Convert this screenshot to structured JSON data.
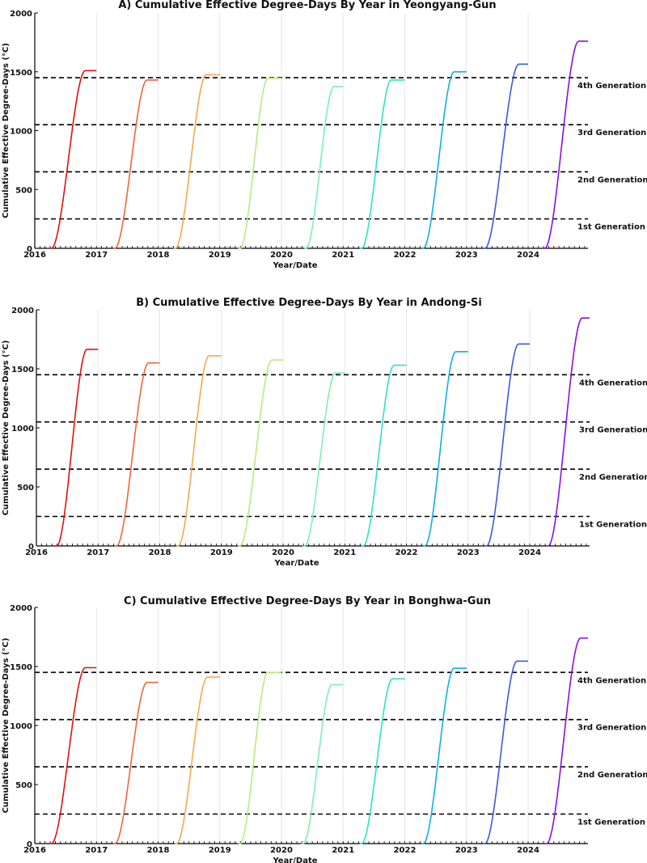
{
  "chart_data": [
    {
      "type": "line",
      "title": "A)  Cumulative Effective Degree-Days By Year in Yeongyang-Gun",
      "xlabel": "Year/Date",
      "ylabel": "Cumulative Effective Degree-Days (°C)",
      "xlim": [
        2016,
        2024.97
      ],
      "ylim": [
        0,
        2000
      ],
      "x_ticks": [
        "2016",
        "2017",
        "2018",
        "2019",
        "2020",
        "2021",
        "2022",
        "2023",
        "2024"
      ],
      "y_ticks": [
        "0",
        "500",
        "1000",
        "1500",
        "2000"
      ],
      "grid": "vertical",
      "thresholds": [
        {
          "label": "1st Generation",
          "value": 250
        },
        {
          "label": "2nd Generation",
          "value": 650
        },
        {
          "label": "3rd Generation",
          "value": 1050
        },
        {
          "label": "4th Generation",
          "value": 1450
        }
      ],
      "series": [
        {
          "year": 2016,
          "color": "#e01010",
          "start": 2016.27,
          "end": 2016.82,
          "max": 1510
        },
        {
          "year": 2017,
          "color": "#f0643a",
          "start": 2017.3,
          "end": 2017.82,
          "max": 1430
        },
        {
          "year": 2018,
          "color": "#f5a84e",
          "start": 2018.28,
          "end": 2018.78,
          "max": 1475
        },
        {
          "year": 2019,
          "color": "#b8ea80",
          "start": 2019.33,
          "end": 2019.78,
          "max": 1445
        },
        {
          "year": 2020,
          "color": "#7cf0b0",
          "start": 2020.4,
          "end": 2020.85,
          "max": 1375
        },
        {
          "year": 2021,
          "color": "#30e0c8",
          "start": 2021.3,
          "end": 2021.78,
          "max": 1430
        },
        {
          "year": 2022,
          "color": "#10b0e0",
          "start": 2022.3,
          "end": 2022.8,
          "max": 1500
        },
        {
          "year": 2023,
          "color": "#3a5ae0",
          "start": 2023.3,
          "end": 2023.85,
          "max": 1565
        },
        {
          "year": 2024,
          "color": "#8a10e0",
          "start": 2024.27,
          "end": 2024.82,
          "max": 1760
        }
      ]
    },
    {
      "type": "line",
      "title": "B)  Cumulative Effective Degree-Days By Year in Andong-Si",
      "xlabel": "Year/Date",
      "ylabel": "Cumulative Effective Degree-Days (°C)",
      "xlim": [
        2016,
        2024.97
      ],
      "ylim": [
        0,
        2000
      ],
      "x_ticks": [
        "2016",
        "2017",
        "2018",
        "2019",
        "2020",
        "2021",
        "2022",
        "2023",
        "2024"
      ],
      "y_ticks": [
        "0",
        "500",
        "1000",
        "1500",
        "2000"
      ],
      "grid": "vertical",
      "thresholds": [
        {
          "label": "1st Generation",
          "value": 250
        },
        {
          "label": "2nd Generation",
          "value": 650
        },
        {
          "label": "3rd Generation",
          "value": 1050
        },
        {
          "label": "4th Generation",
          "value": 1450
        }
      ],
      "series": [
        {
          "year": 2016,
          "color": "#e01010",
          "start": 2016.33,
          "end": 2016.82,
          "max": 1665
        },
        {
          "year": 2017,
          "color": "#f0643a",
          "start": 2017.3,
          "end": 2017.82,
          "max": 1550
        },
        {
          "year": 2018,
          "color": "#f5a84e",
          "start": 2018.3,
          "end": 2018.8,
          "max": 1610
        },
        {
          "year": 2019,
          "color": "#b8ea80",
          "start": 2019.3,
          "end": 2019.82,
          "max": 1575
        },
        {
          "year": 2020,
          "color": "#7cf0b0",
          "start": 2020.35,
          "end": 2020.85,
          "max": 1465
        },
        {
          "year": 2021,
          "color": "#30e0c8",
          "start": 2021.3,
          "end": 2021.8,
          "max": 1530
        },
        {
          "year": 2022,
          "color": "#10b0e0",
          "start": 2022.3,
          "end": 2022.8,
          "max": 1645
        },
        {
          "year": 2023,
          "color": "#3a5ae0",
          "start": 2023.3,
          "end": 2023.82,
          "max": 1710
        },
        {
          "year": 2024,
          "color": "#8a10e0",
          "start": 2024.3,
          "end": 2024.85,
          "max": 1930
        }
      ]
    },
    {
      "type": "line",
      "title": "C)  Cumulative Effective Degree-Days By Year in Bonghwa-Gun",
      "xlabel": "Year/Date",
      "ylabel": "Cumulative Effective Degree-Days (°C)",
      "xlim": [
        2016,
        2024.97
      ],
      "ylim": [
        0,
        2000
      ],
      "x_ticks": [
        "2016",
        "2017",
        "2018",
        "2019",
        "2020",
        "2021",
        "2022",
        "2023",
        "2024"
      ],
      "y_ticks": [
        "0",
        "500",
        "1000",
        "1500",
        "2000"
      ],
      "grid": "vertical",
      "thresholds": [
        {
          "label": "1st Generation",
          "value": 250
        },
        {
          "label": "2nd Generation",
          "value": 650
        },
        {
          "label": "3rd Generation",
          "value": 1050
        },
        {
          "label": "4th Generation",
          "value": 1450
        }
      ],
      "series": [
        {
          "year": 2016,
          "color": "#e01010",
          "start": 2016.27,
          "end": 2016.82,
          "max": 1490
        },
        {
          "year": 2017,
          "color": "#f0643a",
          "start": 2017.3,
          "end": 2017.82,
          "max": 1365
        },
        {
          "year": 2018,
          "color": "#f5a84e",
          "start": 2018.3,
          "end": 2018.8,
          "max": 1410
        },
        {
          "year": 2019,
          "color": "#b8ea80",
          "start": 2019.33,
          "end": 2019.78,
          "max": 1450
        },
        {
          "year": 2020,
          "color": "#7cf0b0",
          "start": 2020.35,
          "end": 2020.82,
          "max": 1345
        },
        {
          "year": 2021,
          "color": "#30e0c8",
          "start": 2021.3,
          "end": 2021.8,
          "max": 1395
        },
        {
          "year": 2022,
          "color": "#10b0e0",
          "start": 2022.3,
          "end": 2022.8,
          "max": 1485
        },
        {
          "year": 2023,
          "color": "#3a5ae0",
          "start": 2023.3,
          "end": 2023.82,
          "max": 1545
        },
        {
          "year": 2024,
          "color": "#8a10e0",
          "start": 2024.3,
          "end": 2024.85,
          "max": 1740
        }
      ]
    }
  ]
}
